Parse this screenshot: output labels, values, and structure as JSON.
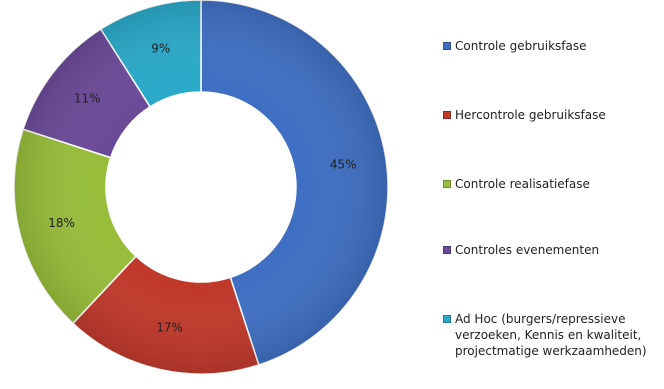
{
  "chart_data": {
    "type": "pie",
    "variant": "donut",
    "legend_position": "right",
    "categories": [
      "Controle gebruiksfase",
      "Hercontrole gebruiksfase",
      "Controle realisatiefase",
      "Controles evenementen",
      "Ad Hoc (burgers/repressieve\nverzoeken, Kennis en kwaliteit,\nprojectmatige werkzaamheden)"
    ],
    "values": [
      45,
      17,
      18,
      11,
      9
    ],
    "data_labels": [
      "45%",
      "17%",
      "18%",
      "11%",
      "9%"
    ],
    "colors": [
      "#3f6fc2",
      "#c0392b",
      "#97bd3a",
      "#6b4a98",
      "#2aa9c9"
    ]
  }
}
